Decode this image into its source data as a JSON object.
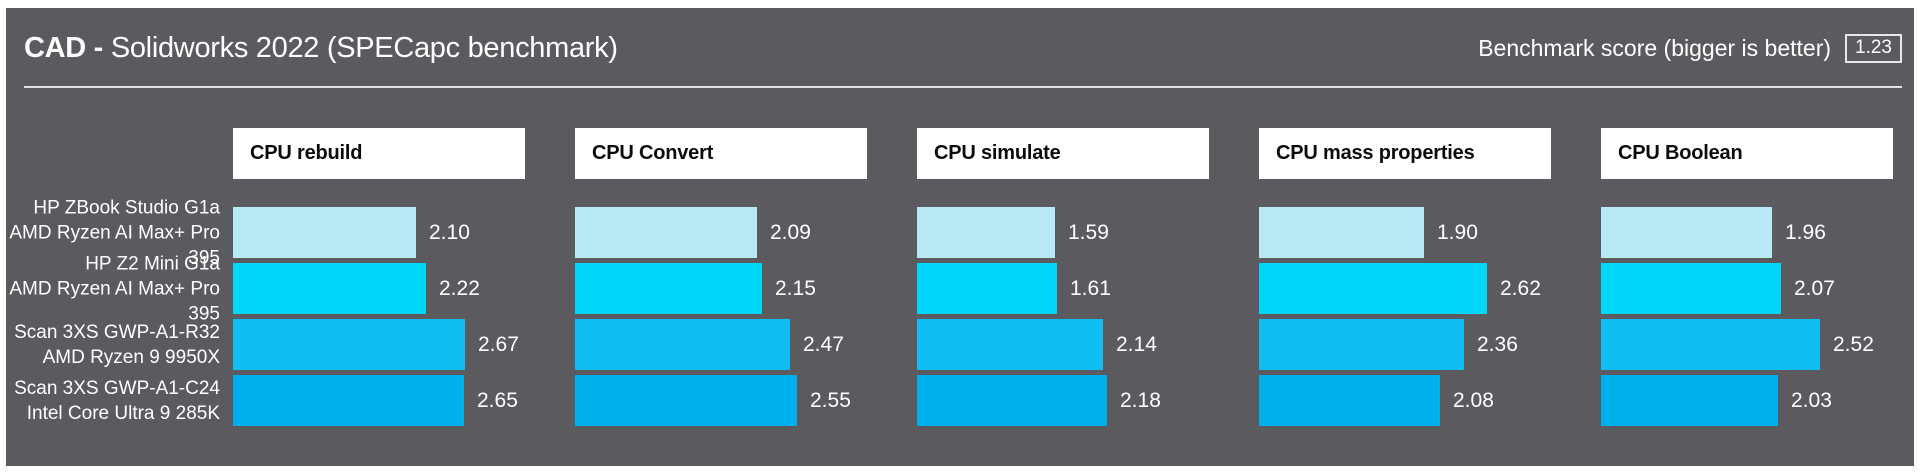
{
  "header": {
    "title_bold": "CAD - ",
    "title_rest": "Solidworks 2022 (SPECapc benchmark)",
    "legend_text": "Benchmark score (bigger is better)",
    "legend_badge": "1.23"
  },
  "colors": {
    "panel_background": "#5b5b5f",
    "frame": "#ffffff",
    "header_box": "#ffffff",
    "text": "#ffffff",
    "rule": "#e2e2e2"
  },
  "chart_data": {
    "type": "bar",
    "orientation": "horizontal",
    "title": "CAD - Solidworks 2022 (SPECapc benchmark)",
    "note": "Benchmark score (bigger is better)",
    "xlim": [
      0,
      2.8
    ],
    "grid": false,
    "legend_position": "none",
    "categories": [
      "CPU rebuild",
      "CPU Convert",
      "CPU simulate",
      "CPU mass properties",
      "CPU Boolean"
    ],
    "series": [
      {
        "name": "HP ZBook Studio G1a",
        "cpu": "AMD Ryzen AI Max+ Pro 395",
        "color": "#b8e9f4",
        "values": [
          "2.10",
          "2.09",
          "1.59",
          "1.90",
          "1.96"
        ]
      },
      {
        "name": "HP Z2 Mini G1a",
        "cpu": "AMD Ryzen AI Max+ Pro 395",
        "color": "#00d6f7",
        "values": [
          "2.22",
          "2.15",
          "1.61",
          "2.62",
          "2.07"
        ]
      },
      {
        "name": "Scan 3XS GWP-A1-R32",
        "cpu": "AMD Ryzen 9 9950X",
        "color": "#0fbdf2",
        "values": [
          "2.67",
          "2.47",
          "2.14",
          "2.36",
          "2.52"
        ]
      },
      {
        "name": "Scan 3XS GWP-A1-C24",
        "cpu": "Intel Core Ultra 9 285K",
        "color": "#00b0ec",
        "values": [
          "2.65",
          "2.55",
          "2.18",
          "2.08",
          "2.03"
        ]
      }
    ]
  }
}
